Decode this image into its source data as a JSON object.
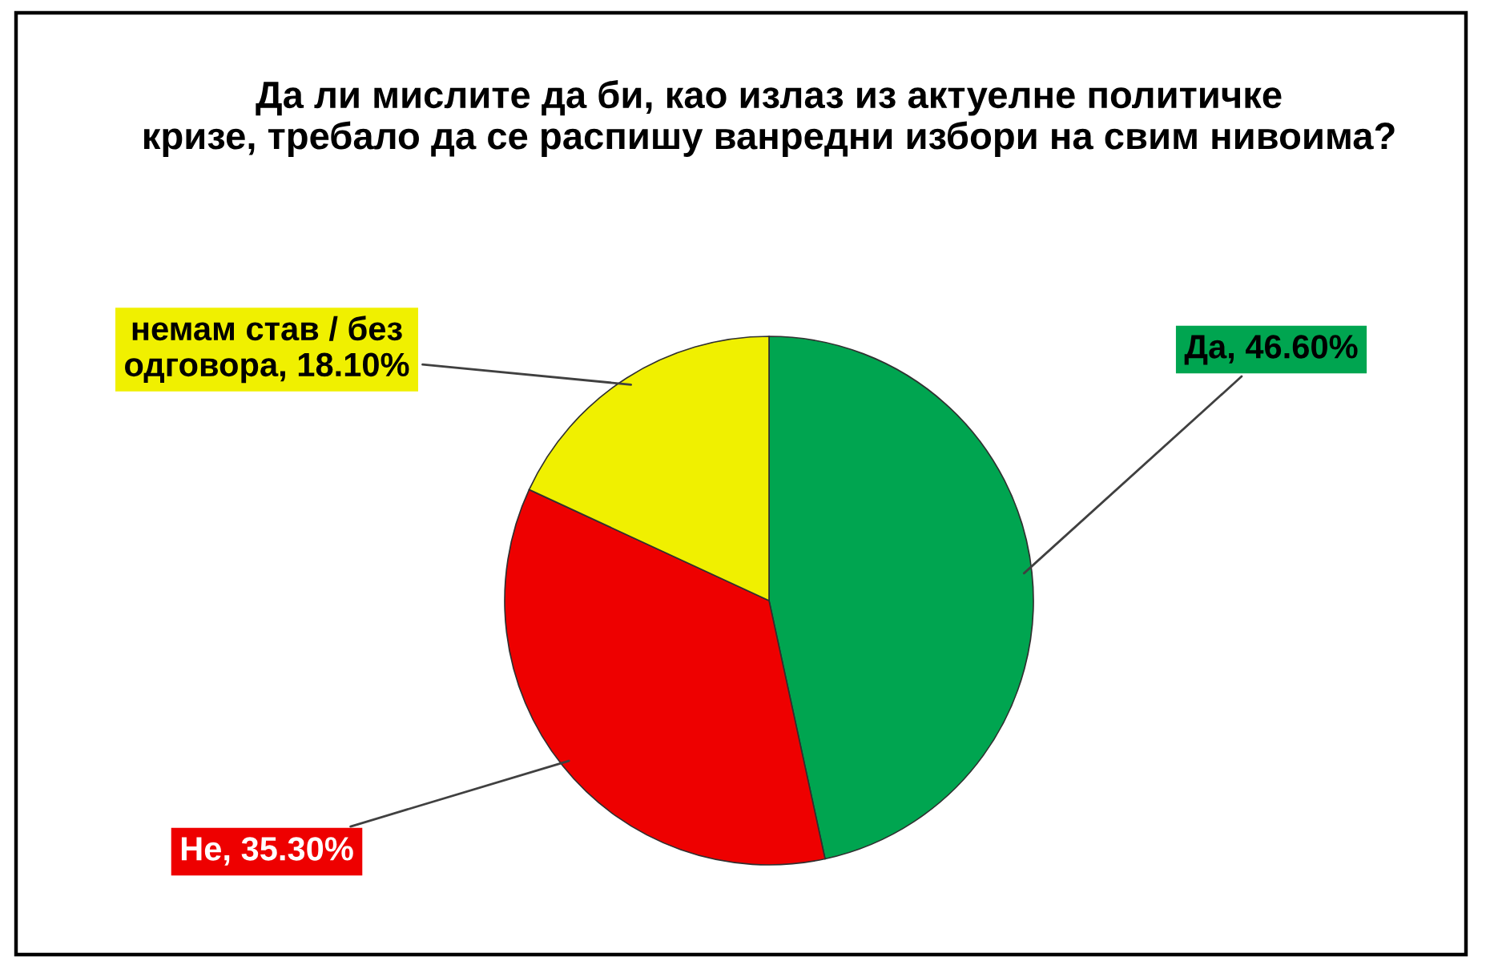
{
  "chart_data": {
    "type": "pie",
    "title": "Да ли мислите да би, као излаз из актуелне политичке\nкризе, требало да се распишу ванредни избори на свим нивоима?",
    "categories": [
      "Да",
      "Не",
      "немам став / без одговора"
    ],
    "values": [
      46.6,
      35.3,
      18.1
    ],
    "colors": [
      "#00a550",
      "#ee0000",
      "#f0f000"
    ],
    "value_labels": [
      "46.60%",
      "35.30%",
      "18.10%"
    ]
  }
}
